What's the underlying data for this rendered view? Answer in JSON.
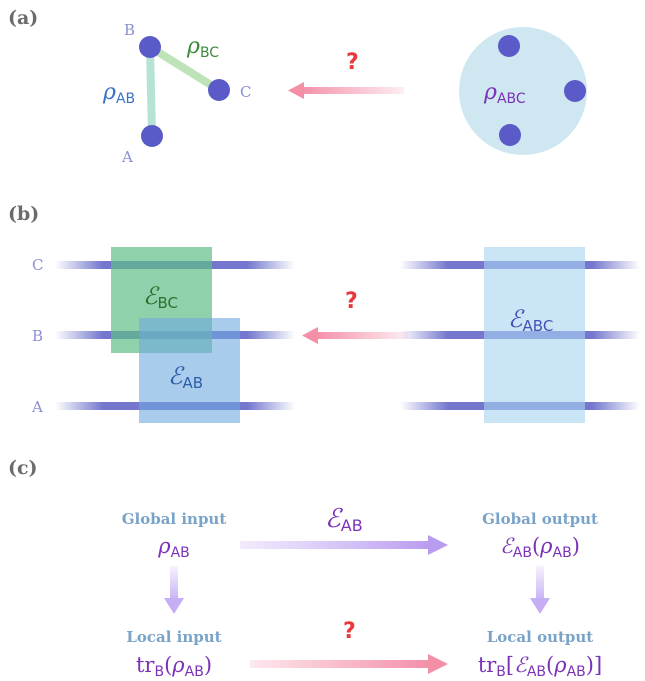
{
  "panels": {
    "a": "(a)",
    "b": "(b)",
    "c": "(c)"
  },
  "panel_a": {
    "nodes": {
      "A": "A",
      "B": "B",
      "C": "C"
    },
    "rho": "ρ",
    "sub_ab": "AB",
    "sub_bc": "BC",
    "sub_abc": "ABC",
    "question": "?"
  },
  "panel_b": {
    "qubits": {
      "C": "C",
      "B": "B",
      "A": "A"
    },
    "eps": "ℰ",
    "sub_bc": "BC",
    "sub_ab": "AB",
    "sub_abc": "ABC",
    "question": "?"
  },
  "panel_c": {
    "global_input": "Global input",
    "global_output": "Global output",
    "local_input": "Local input",
    "local_output": "Local output",
    "eps": "ℰ",
    "rho": "ρ",
    "sub_ab": "AB",
    "tr": "tr",
    "sub_b": "B",
    "lparen": "(",
    "rparen": ")",
    "lbracket": "[",
    "rbracket": "]",
    "question": "?"
  },
  "colors": {
    "node": "#5a5ac8",
    "green": "#3d8a3d",
    "blue": "#3a73c4",
    "purple": "#7a33b8",
    "red": "#e8383d",
    "pink_arrow": "#f48fa8",
    "lilac_arrow": "#b99cf0"
  }
}
